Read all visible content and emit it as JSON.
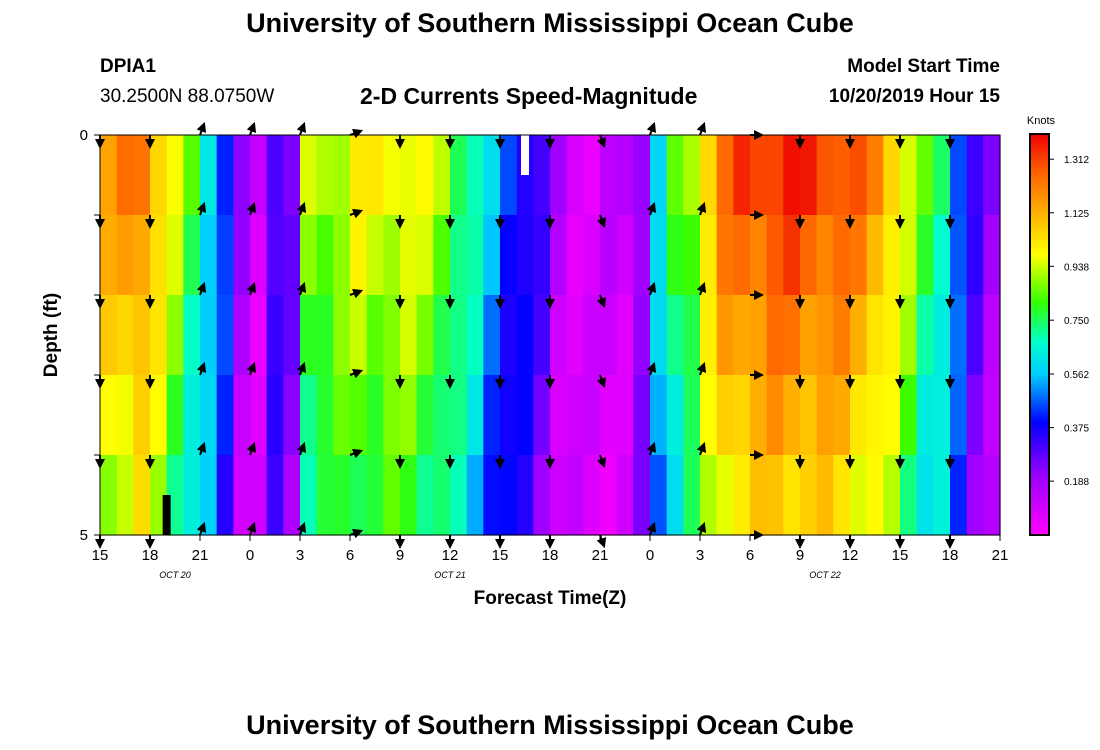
{
  "header": {
    "title": "University of Southern Mississippi Ocean Cube",
    "footer_title": "University of Southern Mississippi Ocean Cube",
    "station_id": "DPIA1",
    "station_coords": "30.2500N 88.0750W",
    "plot_title": "2-D Currents Speed-Magnitude",
    "model_start_label": "Model Start Time",
    "model_start_value": "10/20/2019 Hour 15"
  },
  "chart_data": {
    "type": "heatmap",
    "title": "2-D Currents Speed-Magnitude",
    "xlabel": "Forecast Time(Z)",
    "ylabel": "Depth (ft)",
    "x_tick_labels": [
      "15",
      "18",
      "21",
      "0",
      "3",
      "6",
      "9",
      "12",
      "15",
      "18",
      "21",
      "0",
      "3",
      "6",
      "9",
      "12",
      "15",
      "18",
      "21"
    ],
    "date_labels": [
      {
        "label": "OCT 20",
        "tick_index": 1.5
      },
      {
        "label": "OCT 21",
        "tick_index": 7
      },
      {
        "label": "OCT 22",
        "tick_index": 14.5
      }
    ],
    "y_tick_labels": [
      "0",
      "5"
    ],
    "ylim": [
      0,
      5
    ],
    "depth_levels": [
      0,
      1,
      2,
      3,
      4,
      5
    ],
    "hours": 54,
    "colorbar": {
      "unit": "Knots",
      "min": 0.0,
      "max": 1.4,
      "tick_labels": [
        "1.312",
        "1.125",
        "0.938",
        "0.750",
        "0.562",
        "0.375",
        "0.188"
      ]
    },
    "speed_profile_knots": [
      1.15,
      1.2,
      1.25,
      1.1,
      0.95,
      0.8,
      0.65,
      0.45,
      0.18,
      0.1,
      0.35,
      0.25,
      0.9,
      0.92,
      0.95,
      1.0,
      0.98,
      1.0,
      1.0,
      0.95,
      0.9,
      0.8,
      0.7,
      0.55,
      0.45,
      0.4,
      0.3,
      0.15,
      0.1,
      0.08,
      0.1,
      0.12,
      0.25,
      0.6,
      0.8,
      0.9,
      1.1,
      1.25,
      1.3,
      1.32,
      1.35,
      1.35,
      1.33,
      1.32,
      1.3,
      1.25,
      1.2,
      1.1,
      0.95,
      0.8,
      0.75,
      0.5,
      0.3,
      0.2
    ],
    "arrow_rows_depth": [
      0,
      1,
      2,
      3,
      4,
      5
    ],
    "arrow_hours": [
      0,
      3,
      6,
      9,
      12,
      15,
      18,
      21,
      24,
      27,
      30,
      33,
      36,
      39,
      42,
      45,
      48,
      51
    ],
    "arrow_directions_deg": [
      180,
      180,
      20,
      20,
      20,
      70,
      180,
      180,
      180,
      180,
      160,
      20,
      20,
      90,
      180,
      180,
      180,
      180
    ],
    "missing_segments": [
      {
        "hour": 25.5,
        "depth_from": 0,
        "depth_to": 0.5,
        "color": "#ffffff"
      },
      {
        "hour": 4,
        "depth_from": 4.5,
        "depth_to": 5,
        "color": "#000000"
      }
    ]
  }
}
